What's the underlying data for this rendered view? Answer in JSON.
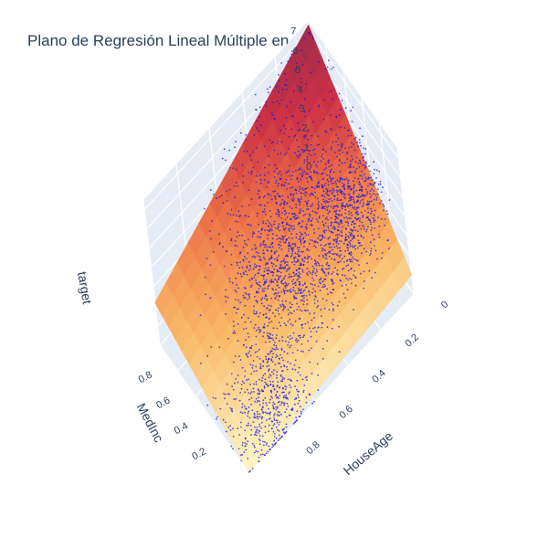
{
  "chart_data": {
    "type": "scatter",
    "title": "Plano de Regresión Lineal Múltiple en 3D",
    "traces": [
      "scatter3d points",
      "regression surface"
    ],
    "axes": {
      "x": {
        "label": "MedInc",
        "ticks": [
          "0.2",
          "0.4",
          "0.6",
          "0.8"
        ],
        "range": [
          0,
          1
        ]
      },
      "y": {
        "label": "HouseAge",
        "ticks": [
          "0",
          "0.2",
          "0.4",
          "0.6",
          "0.8"
        ],
        "range": [
          0,
          1
        ]
      },
      "z": {
        "label": "target",
        "ticks": [
          "0",
          "1",
          "2",
          "3",
          "4",
          "5",
          "6",
          "7"
        ],
        "range": [
          0,
          7.5
        ]
      }
    },
    "regression_plane": {
      "z_at_medinc_1_houseage_0": 7.3,
      "z_at_medinc_0_houseage_0": 1.0,
      "z_at_medinc_1_houseage_1": 2.2,
      "z_at_medinc_0_houseage_1": 0.0
    },
    "colorscale": [
      "#fdf8c8",
      "#f9b866",
      "#ee7447",
      "#cd3145",
      "#9d2c4c"
    ],
    "point_color": "#1a14e0",
    "point_clusters": [
      {
        "medinc": 0.5,
        "houseage": 0.45,
        "spread": 0.16,
        "share": 0.45
      },
      {
        "medinc": 0.4,
        "houseage": 0.15,
        "spread": 0.1,
        "share": 0.25
      },
      {
        "medinc": 0.15,
        "houseage": 0.8,
        "spread": 0.12,
        "share": 0.18
      },
      {
        "medinc": 0.78,
        "houseage": 0.35,
        "spread": 0.2,
        "share": 0.12
      }
    ],
    "grid": true
  }
}
